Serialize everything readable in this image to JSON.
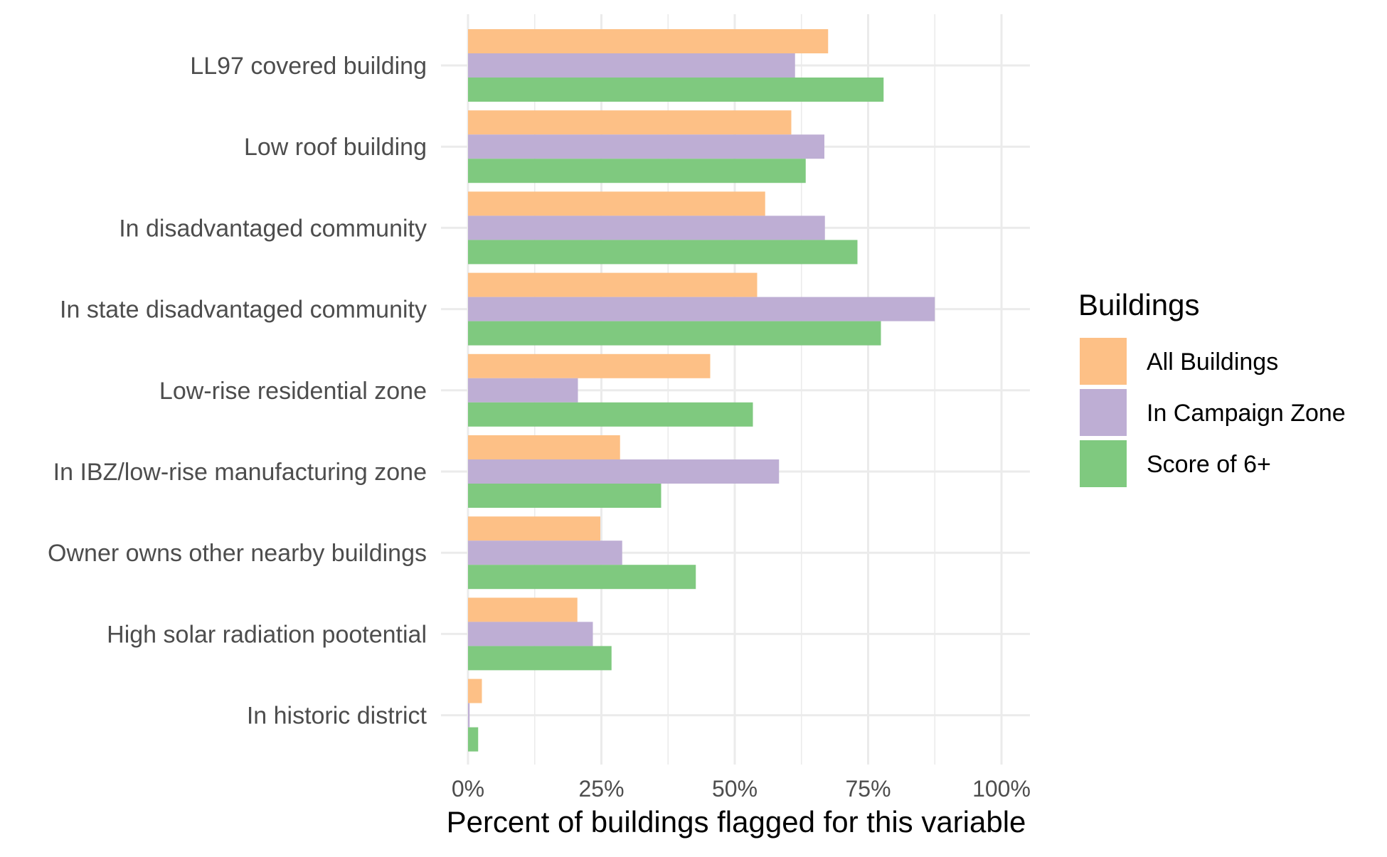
{
  "chart_data": {
    "type": "bar",
    "orientation": "horizontal",
    "categories": [
      "LL97 covered building",
      "Low roof building",
      "In disadvantaged community",
      "In state disadvantaged community",
      "Low-rise residential zone",
      "In IBZ/low-rise manufacturing zone",
      "Owner owns other nearby buildings",
      "High solar radiation pootential",
      "In historic district"
    ],
    "series": [
      {
        "name": "All Buildings",
        "color": "#FDC086",
        "values": [
          67.5,
          60.6,
          55.7,
          54.2,
          45.4,
          28.5,
          24.8,
          20.5,
          2.6
        ]
      },
      {
        "name": "In Campaign Zone",
        "color": "#BEAED4",
        "values": [
          61.3,
          66.8,
          66.9,
          87.5,
          20.6,
          58.3,
          28.9,
          23.4,
          0.3
        ]
      },
      {
        "name": "Score of 6+",
        "color": "#7FC97F",
        "values": [
          77.9,
          63.3,
          73.0,
          77.4,
          53.4,
          36.2,
          42.7,
          26.9,
          1.9
        ]
      }
    ],
    "xlabel": "Percent of buildings flagged for this variable",
    "ylabel": "",
    "xlim": [
      0,
      100
    ],
    "xticks": [
      "0%",
      "25%",
      "50%",
      "75%",
      "100%"
    ],
    "legend": {
      "title": "Buildings",
      "position": "right"
    },
    "grid": true,
    "colors": {
      "grid": "#EBEBEB",
      "text": "#4D4D4D",
      "title": "#000000"
    }
  }
}
